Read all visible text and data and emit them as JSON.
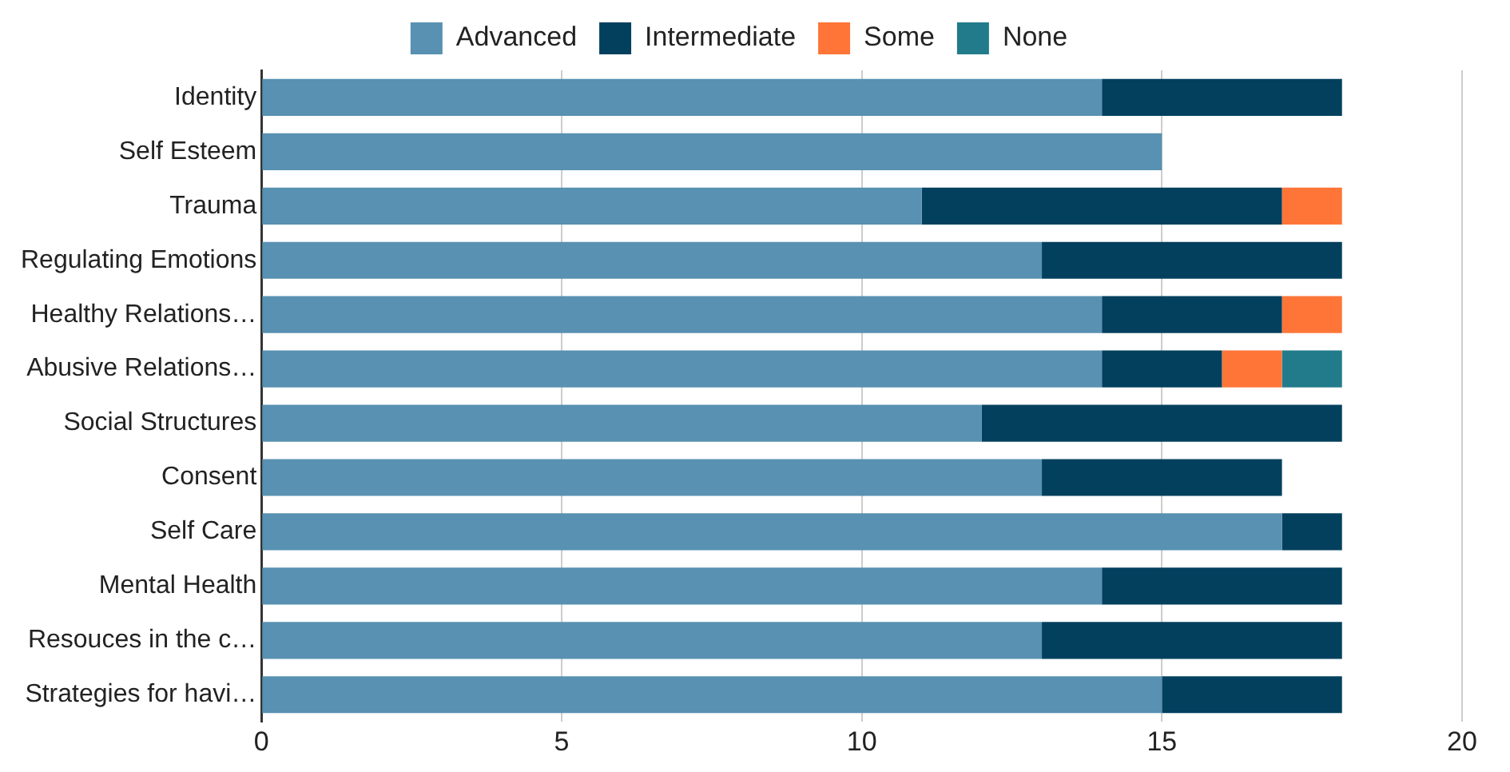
{
  "chart_data": {
    "type": "bar",
    "orientation": "horizontal",
    "stacked": true,
    "categories": [
      "Identity",
      "Self Esteem",
      "Trauma",
      "Regulating Emotions",
      "Healthy Relations…",
      "Abusive Relations…",
      "Social Structures",
      "Consent",
      "Self Care",
      "Mental Health",
      "Resouces in the c…",
      "Strategies for havi…"
    ],
    "series": [
      {
        "name": "Advanced",
        "color": "#5891b1",
        "values": [
          14,
          15,
          11,
          13,
          14,
          14,
          12,
          13,
          17,
          14,
          13,
          15
        ]
      },
      {
        "name": "Intermediate",
        "color": "#02405e",
        "values": [
          4,
          null,
          6,
          5,
          3,
          2,
          6,
          4,
          1,
          4,
          5,
          3
        ]
      },
      {
        "name": "Some",
        "color": "#ff7538",
        "values": [
          null,
          null,
          1,
          null,
          1,
          1,
          null,
          null,
          null,
          null,
          null,
          null
        ]
      },
      {
        "name": "None",
        "color": "#227b8b",
        "values": [
          null,
          null,
          null,
          null,
          null,
          1,
          null,
          null,
          null,
          null,
          null,
          null
        ]
      }
    ],
    "xlim": [
      0,
      20
    ],
    "xticks": [
      0,
      5,
      10,
      15,
      20
    ],
    "grid": "x",
    "legend": "top"
  }
}
